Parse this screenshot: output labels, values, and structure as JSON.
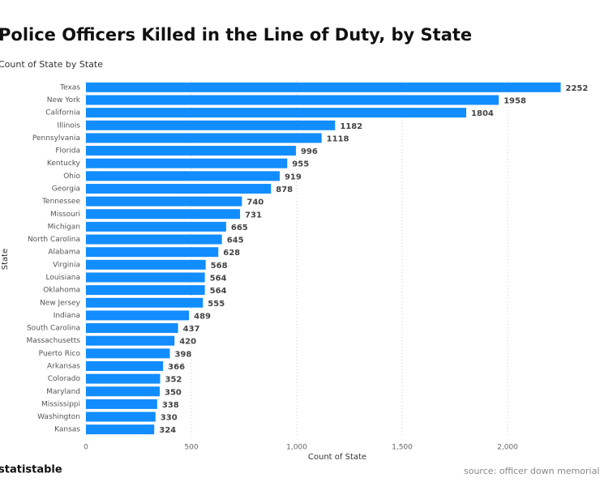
{
  "chart_data": {
    "type": "bar",
    "orientation": "horizontal",
    "title": "Police Officers Killed in the Line of Duty, by State",
    "subtitle": "Count of State by State",
    "x_label": "Count of State",
    "y_label": "State",
    "categories": [
      "Texas",
      "New York",
      "California",
      "Illinois",
      "Pennsylvania",
      "Florida",
      "Kentucky",
      "Ohio",
      "Georgia",
      "Tennessee",
      "Missouri",
      "Michigan",
      "North Carolina",
      "Alabama",
      "Virginia",
      "Louisiana",
      "Oklahoma",
      "New Jersey",
      "Indiana",
      "South Carolina",
      "Massachusetts",
      "Puerto Rico",
      "Arkansas",
      "Colorado",
      "Maryland",
      "Mississippi",
      "Washington",
      "Kansas"
    ],
    "values": [
      2252,
      1958,
      1804,
      1182,
      1118,
      996,
      955,
      919,
      878,
      740,
      731,
      665,
      645,
      628,
      568,
      564,
      564,
      555,
      489,
      437,
      420,
      398,
      366,
      352,
      350,
      338,
      330,
      324
    ],
    "color": "#118dff",
    "xlim": [
      0,
      2400
    ],
    "xticks": [
      0,
      500,
      {
        "value": 1000,
        "label": "1,000"
      },
      {
        "value": 1500,
        "label": "1,500"
      },
      {
        "value": 2000,
        "label": "2,000"
      }
    ],
    "grid": true,
    "footer": "statistable",
    "source": "source: officer down memorial"
  }
}
